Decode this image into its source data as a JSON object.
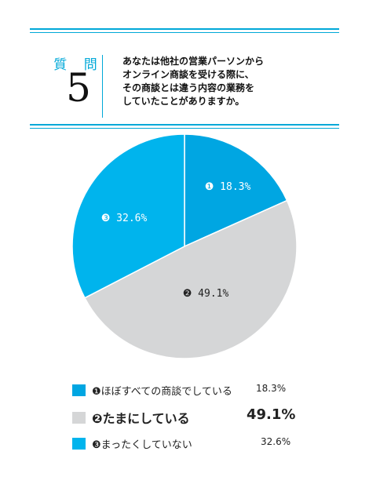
{
  "question": {
    "label": "質 問",
    "number": "5",
    "text": "あなたは他社の営業パーソンから\nオンライン商談を受ける際に、\nその商談とは違う内容の業務を\nしていたことがありますか。"
  },
  "colors": {
    "accent": "#00a8d8",
    "blue": "#00a6e2",
    "light_blue": "#00b4ed",
    "gray": "#d5d6d7",
    "white": "#ffffff"
  },
  "chart_data": {
    "type": "pie",
    "slices": [
      {
        "marker": "❶",
        "label": "ほぼすべての商談でしている",
        "value": 18.3,
        "value_label": "18.3%",
        "color": "#00a6e2"
      },
      {
        "marker": "❷",
        "label": "たまにしている",
        "value": 49.1,
        "value_label": "49.1%",
        "color": "#d5d6d7"
      },
      {
        "marker": "❸",
        "label": "まったくしていない",
        "value": 32.6,
        "value_label": "32.6%",
        "color": "#00b4ed"
      }
    ],
    "pie_labels": [
      "❶ 18.3%",
      "❷ 49.1%",
      "❸ 32.6%"
    ],
    "legend_position": "bottom"
  },
  "legend": [
    {
      "label": "❶ほぼすべての商談でしている",
      "value": "18.3%"
    },
    {
      "label": "❷たまにしている",
      "value": "49.1%"
    },
    {
      "label": "❸まったくしていない",
      "value": "32.6%"
    }
  ]
}
